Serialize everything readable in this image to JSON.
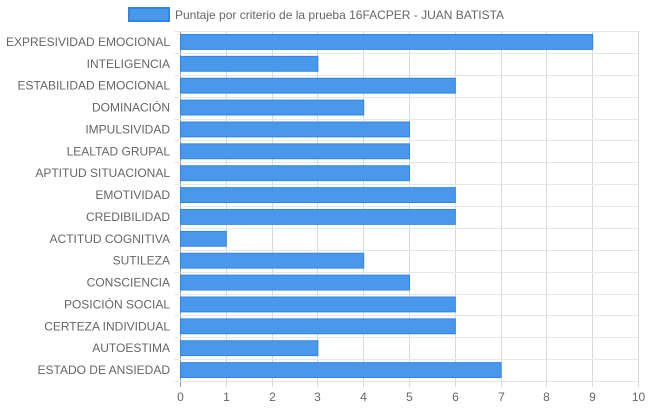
{
  "chart_data": {
    "type": "bar",
    "orientation": "horizontal",
    "categories": [
      "EXPRESIVIDAD EMOCIONAL",
      "INTELIGENCIA",
      "ESTABILIDAD EMOCIONAL",
      "DOMINACIÓN",
      "IMPULSIVIDAD",
      "LEALTAD GRUPAL",
      "APTITUD SITUACIONAL",
      "EMOTIVIDAD",
      "CREDIBILIDAD",
      "ACTITUD COGNITIVA",
      "SUTILEZA",
      "CONSCIENCIA",
      "POSICIÓN SOCIAL",
      "CERTEZA INDIVIDUAL",
      "AUTOESTIMA",
      "ESTADO DE ANSIEDAD"
    ],
    "series": [
      {
        "name": "Puntaje por criterio de la prueba 16FACPER - JUAN BATISTA",
        "values": [
          9,
          3,
          6,
          4,
          5,
          5,
          5,
          6,
          6,
          1,
          4,
          5,
          6,
          6,
          3,
          7
        ],
        "color": "#4a98ec",
        "border_color": "#2f86e6"
      }
    ],
    "xlim": [
      0,
      10
    ],
    "x_ticks": [
      "0",
      "1",
      "2",
      "3",
      "4",
      "5",
      "6",
      "7",
      "8",
      "9",
      "10"
    ],
    "grid": true,
    "legend_position": "top"
  }
}
